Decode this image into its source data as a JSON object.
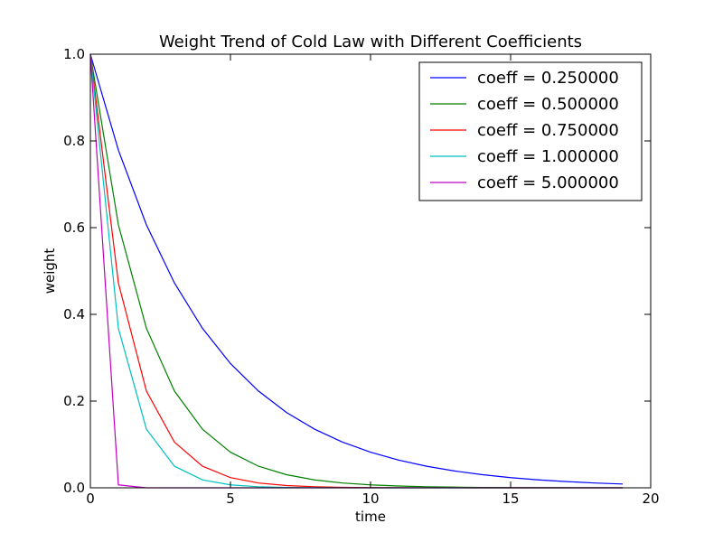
{
  "chart_data": {
    "type": "line",
    "title": "Weight Trend of Cold Law with Different Coefficients",
    "xlabel": "time",
    "ylabel": "weight",
    "xlim": [
      0,
      20
    ],
    "ylim": [
      0,
      1
    ],
    "x_ticks": [
      0,
      5,
      10,
      15,
      20
    ],
    "x_tick_labels": [
      "0",
      "5",
      "10",
      "15",
      "20"
    ],
    "y_ticks": [
      0,
      0.2,
      0.4,
      0.6,
      0.8,
      1.0
    ],
    "y_tick_labels": [
      "0.0",
      "0.2",
      "0.4",
      "0.6",
      "0.8",
      "1.0"
    ],
    "grid": false,
    "legend_position": "top-right",
    "x": [
      0,
      1,
      2,
      3,
      4,
      5,
      6,
      7,
      8,
      9,
      10,
      11,
      12,
      13,
      14,
      15,
      16,
      17,
      18,
      19
    ],
    "series": [
      {
        "name": "coeff = 0.250000",
        "color": "#0000ff",
        "values": [
          1.0,
          0.7788,
          0.6065,
          0.4724,
          0.3679,
          0.2865,
          0.2231,
          0.1738,
          0.1353,
          0.1054,
          0.0821,
          0.0639,
          0.0498,
          0.0388,
          0.0302,
          0.0235,
          0.0183,
          0.0143,
          0.0111,
          0.0087
        ]
      },
      {
        "name": "coeff = 0.500000",
        "color": "#008000",
        "values": [
          1.0,
          0.6065,
          0.3679,
          0.2231,
          0.1353,
          0.0821,
          0.0498,
          0.0302,
          0.0183,
          0.0111,
          0.0067,
          0.0041,
          0.0025,
          0.0015,
          0.0009,
          0.0006,
          0.0003,
          0.0002,
          0.0001,
          0.0001
        ]
      },
      {
        "name": "coeff = 0.750000",
        "color": "#ff0000",
        "values": [
          1.0,
          0.4724,
          0.2231,
          0.1054,
          0.0498,
          0.0235,
          0.0111,
          0.0052,
          0.0025,
          0.0012,
          0.0006,
          0.0003,
          0.0001,
          0.0001,
          0.0,
          0.0,
          0.0,
          0.0,
          0.0,
          0.0
        ]
      },
      {
        "name": "coeff = 1.000000",
        "color": "#00bfbf",
        "values": [
          1.0,
          0.3679,
          0.1353,
          0.0498,
          0.0183,
          0.0067,
          0.0025,
          0.0009,
          0.0003,
          0.0001,
          0.0,
          0.0,
          0.0,
          0.0,
          0.0,
          0.0,
          0.0,
          0.0,
          0.0,
          0.0
        ]
      },
      {
        "name": "coeff = 5.000000",
        "color": "#bf00bf",
        "values": [
          1.0,
          0.0067,
          0.0,
          0.0,
          0.0,
          0.0,
          0.0,
          0.0,
          0.0,
          0.0,
          0.0,
          0.0,
          0.0,
          0.0,
          0.0,
          0.0,
          0.0,
          0.0,
          0.0,
          0.0
        ]
      }
    ]
  }
}
